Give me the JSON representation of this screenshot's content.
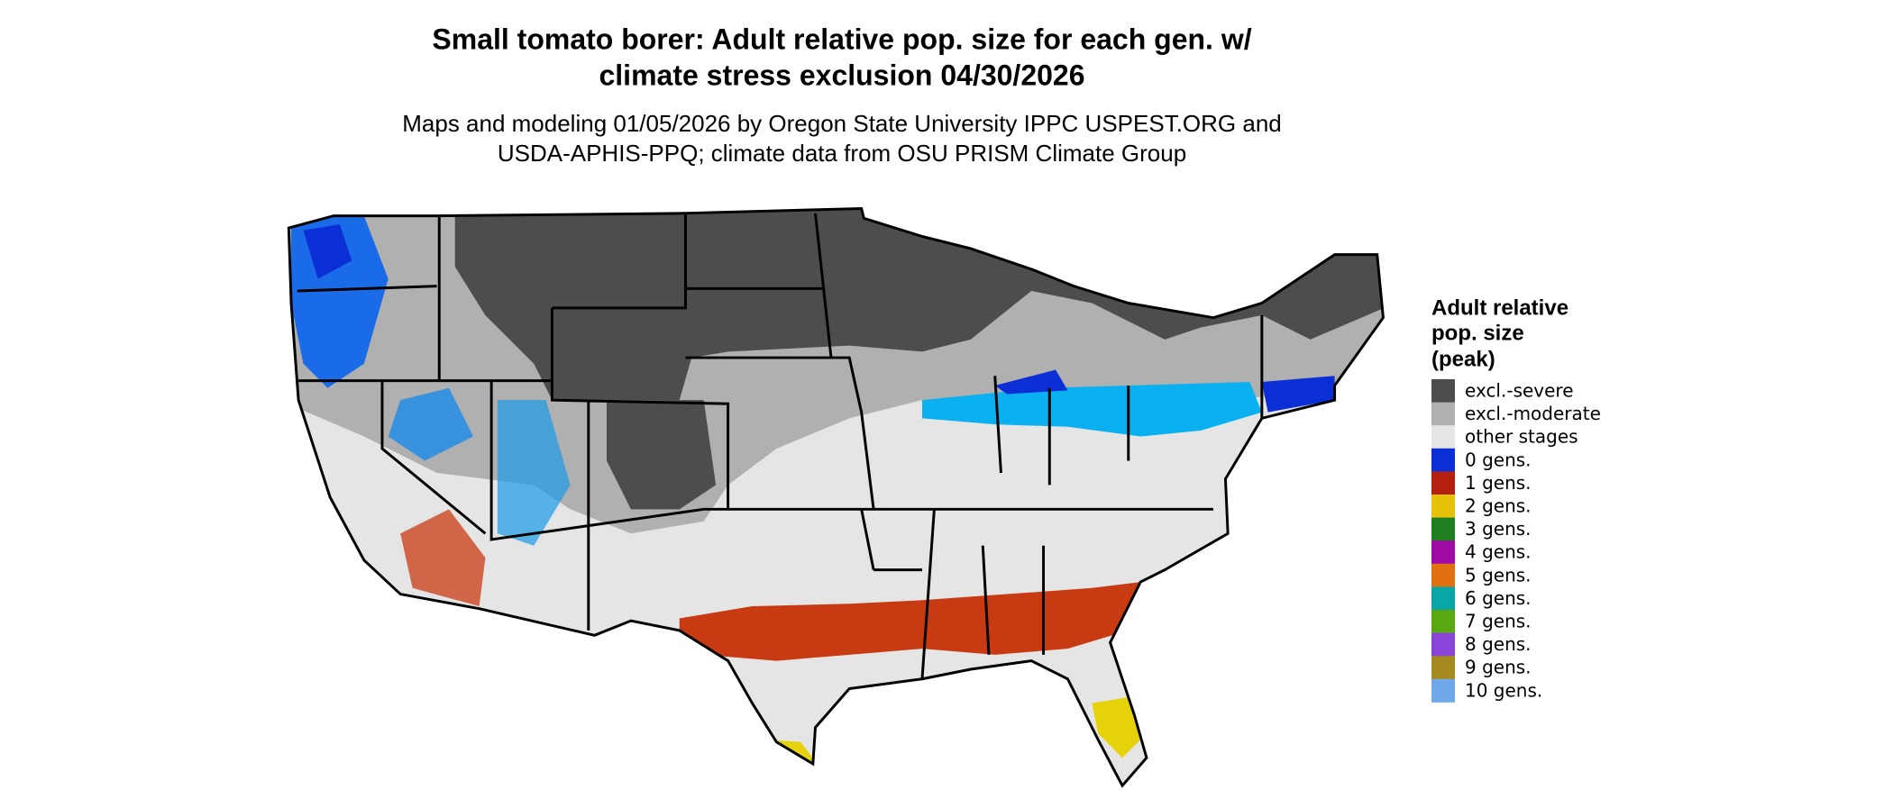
{
  "header": {
    "title": [
      "Small tomato borer: Adult relative pop. size for each gen. w/",
      "climate stress exclusion 04/30/2026"
    ],
    "subtitle": [
      "Maps and modeling 01/05/2026 by Oregon State University IPPC USPEST.ORG and",
      "USDA-APHIS-PPQ; climate data from OSU PRISM Climate Group"
    ]
  },
  "legend": {
    "title": [
      "Adult relative",
      "pop. size",
      "(peak)"
    ],
    "items": [
      {
        "label": "excl.-severe",
        "color": "#4d4d4d"
      },
      {
        "label": "excl.-moderate",
        "color": "#b0b0b0"
      },
      {
        "label": "other stages",
        "color": "#e5e5e5"
      },
      {
        "label": "0 gens.",
        "color": "#0b2fd6"
      },
      {
        "label": "1 gens.",
        "color": "#b3200f"
      },
      {
        "label": "2 gens.",
        "color": "#e6c20a"
      },
      {
        "label": "3 gens.",
        "color": "#1f7f20"
      },
      {
        "label": "4 gens.",
        "color": "#a00aa5"
      },
      {
        "label": "5 gens.",
        "color": "#e07010"
      },
      {
        "label": "6 gens.",
        "color": "#0aa5a5"
      },
      {
        "label": "7 gens.",
        "color": "#5aa812"
      },
      {
        "label": "8 gens.",
        "color": "#8a45d8"
      },
      {
        "label": "9 gens.",
        "color": "#a58a20"
      },
      {
        "label": "10 gens.",
        "color": "#6fa8e8"
      }
    ]
  }
}
